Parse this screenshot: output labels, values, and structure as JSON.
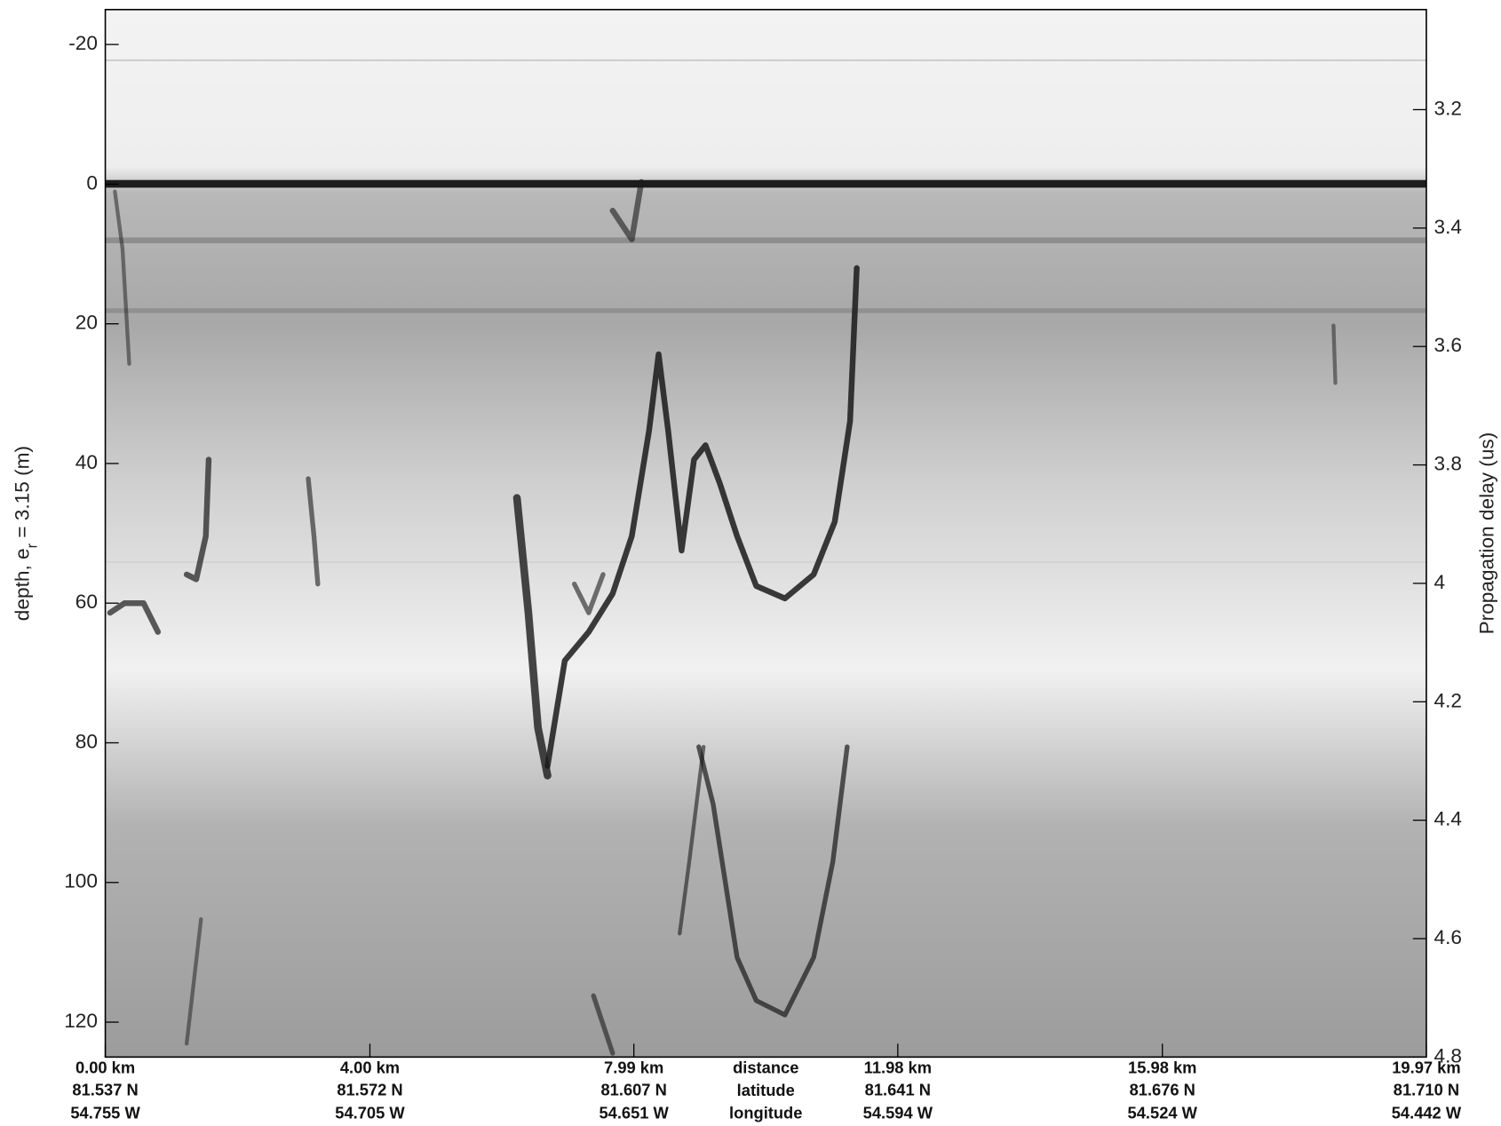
{
  "chart_data": {
    "type": "radargram",
    "ylabel": {
      "text": "depth, e",
      "sub": "r",
      "tail": " = 3.15 (m)"
    },
    "y2label": "Propagation delay (us)",
    "ylim": [
      -25,
      125
    ],
    "y_inverted": true,
    "yticks": [
      -20,
      0,
      20,
      40,
      60,
      80,
      100,
      120
    ],
    "y2lim": [
      3.031,
      4.8
    ],
    "y2ticks": [
      3.2,
      3.4,
      3.6,
      3.8,
      4,
      4.2,
      4.4,
      4.6,
      4.8
    ],
    "xlim": [
      0,
      19.97
    ],
    "xticks": [
      {
        "value": 0,
        "label": "0.00 km"
      },
      {
        "value": 4.0,
        "label": "4.00 km"
      },
      {
        "value": 7.99,
        "label": "7.99 km"
      },
      {
        "value": 11.98,
        "label": "11.98 km"
      },
      {
        "value": 15.98,
        "label": "15.98 km"
      },
      {
        "value": 19.97,
        "label": "19.97 km"
      }
    ],
    "latitudes": [
      "81.537 N",
      "81.572 N",
      "81.607 N",
      "81.641 N",
      "81.676 N",
      "81.710 N"
    ],
    "longitudes": [
      "54.755 W",
      "54.705 W",
      "54.651 W",
      "54.594 W",
      "54.524 W",
      "54.442 W"
    ],
    "row_labels": [
      "distance",
      "latitude",
      "longitude"
    ]
  }
}
